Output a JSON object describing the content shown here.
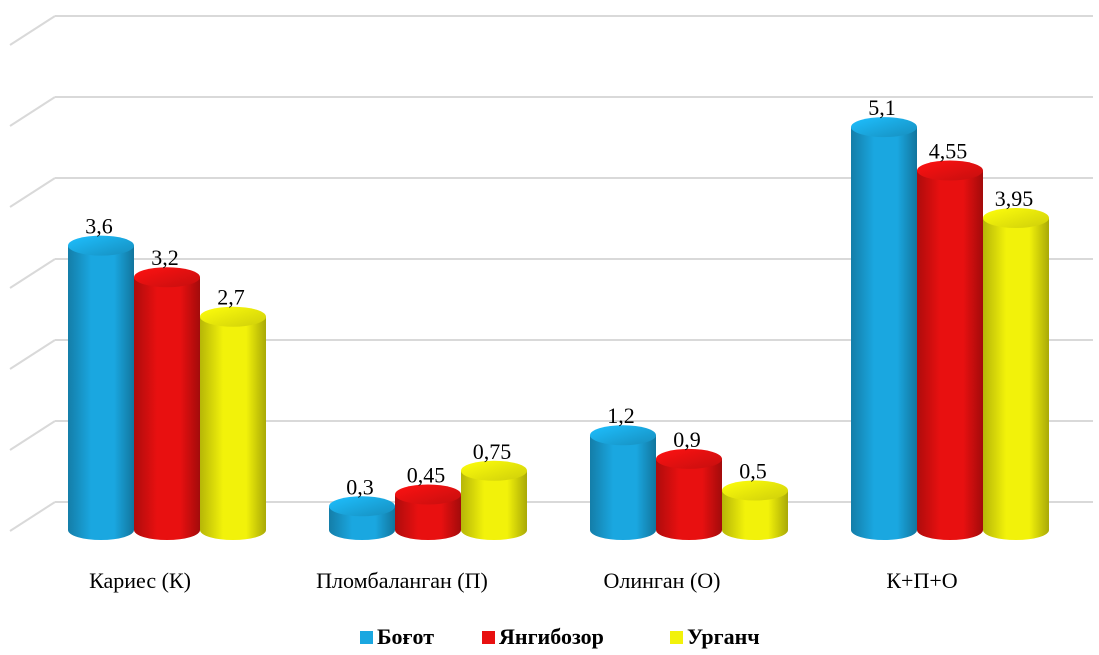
{
  "chart_data": {
    "type": "bar",
    "style": "3d-cylinder",
    "categories": [
      "Кариес (К)",
      "Пломбаланган (П)",
      "Олинган (О)",
      "К+П+О"
    ],
    "series": [
      {
        "name": "Боғот",
        "values": [
          3.6,
          0.3,
          1.2,
          5.1
        ],
        "labels": [
          "3,6",
          "0,3",
          "1,2",
          "5,1"
        ]
      },
      {
        "name": "Янгибозор",
        "values": [
          3.2,
          0.45,
          0.9,
          4.55
        ],
        "labels": [
          "3,2",
          "0,45",
          "0,9",
          "4,55"
        ]
      },
      {
        "name": "Урганч",
        "values": [
          2.7,
          0.75,
          0.5,
          3.95
        ],
        "labels": [
          "2,7",
          "0,75",
          "0,5",
          "3,95"
        ]
      }
    ],
    "ylim": [
      0,
      6
    ],
    "grid": true,
    "legend_position": "bottom",
    "colors": [
      "#1aa7e0",
      "#e81010",
      "#f2f20a"
    ]
  }
}
